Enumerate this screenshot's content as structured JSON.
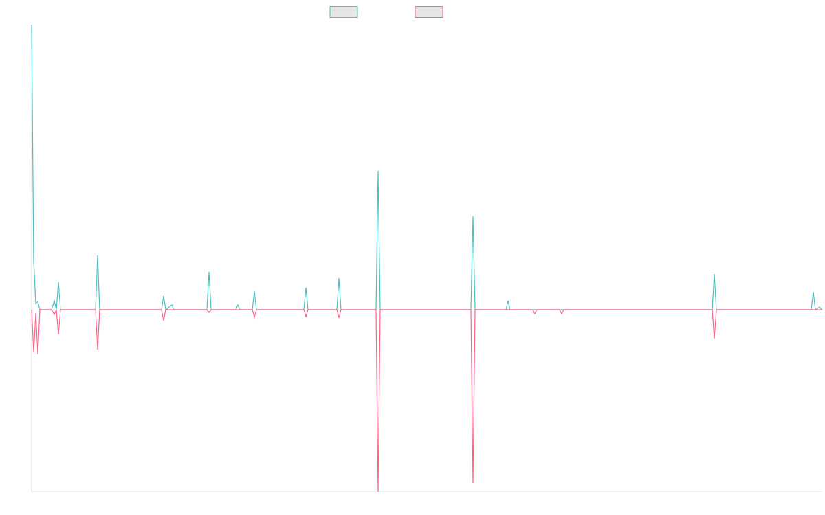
{
  "chart_data": {
    "type": "line",
    "xlim": [
      0,
      1150
    ],
    "ylim": [
      -265,
      415
    ],
    "grid": false,
    "legend": "top",
    "series": [
      {
        "color": "#4bc0c0",
        "x": [
          0,
          3,
          6,
          9,
          12,
          29,
          33,
          36,
          39,
          42,
          93,
          96,
          99,
          189,
          192,
          195,
          204,
          207,
          255,
          258,
          261,
          297,
          300,
          303,
          321,
          324,
          327,
          396,
          399,
          402,
          444,
          447,
          450,
          501,
          504,
          507,
          639,
          642,
          645,
          690,
          693,
          696,
          990,
          993,
          996,
          1134,
          1137,
          1140,
          1146,
          1150
        ],
        "values": [
          415,
          71,
          9,
          12,
          0,
          0,
          13,
          0,
          40,
          0,
          0,
          79,
          0,
          0,
          20,
          0,
          7,
          0,
          0,
          55,
          0,
          0,
          7,
          0,
          0,
          27,
          0,
          0,
          32,
          0,
          0,
          46,
          0,
          0,
          202,
          0,
          0,
          136,
          0,
          0,
          13,
          0,
          0,
          52,
          0,
          0,
          26,
          0,
          4,
          0
        ]
      },
      {
        "color": "#ff6384",
        "x": [
          0,
          3,
          6,
          9,
          12,
          29,
          33,
          36,
          39,
          42,
          93,
          96,
          99,
          189,
          192,
          195,
          255,
          258,
          261,
          321,
          324,
          327,
          396,
          399,
          402,
          444,
          447,
          450,
          501,
          504,
          507,
          639,
          642,
          645,
          729,
          732,
          735,
          768,
          771,
          774,
          990,
          993,
          996,
          1150
        ],
        "values": [
          0,
          -62,
          -5,
          -65,
          0,
          0,
          -7,
          0,
          -36,
          0,
          0,
          -58,
          0,
          0,
          -16,
          0,
          0,
          -4,
          0,
          0,
          -11,
          0,
          0,
          -10,
          0,
          0,
          -12,
          0,
          0,
          -265,
          0,
          0,
          -253,
          0,
          0,
          -6,
          0,
          0,
          -6,
          0,
          0,
          -42,
          0,
          0
        ]
      }
    ]
  }
}
